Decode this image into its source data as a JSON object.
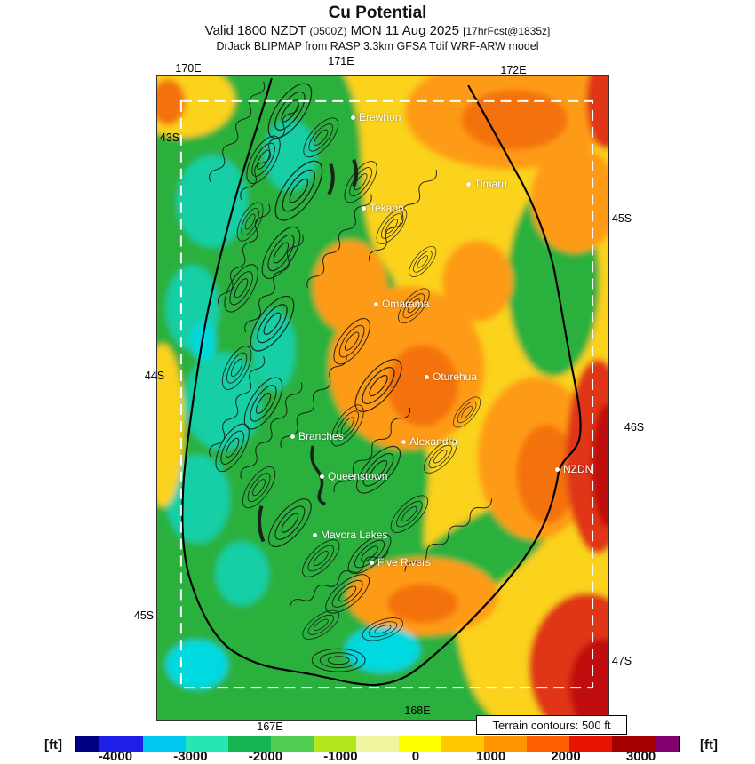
{
  "header": {
    "title": "Cu Potential",
    "valid_prefix": "Valid 1800 NZDT ",
    "valid_small1": "(0500Z)",
    "valid_mid": " MON 11 Aug 2025 ",
    "valid_small2": "[17hrFcst@1835z]",
    "model_line": "DrJack BLIPMAP from RASP 3.3km GFSA Tdif WRF-ARW model"
  },
  "map": {
    "note": "Terrain contours: 500 ft",
    "lon_top": [
      "170E",
      "171E",
      "172E"
    ],
    "lon_bottom": [
      "167E",
      "168E"
    ],
    "lat_left": [
      "43S",
      "44S",
      "45S"
    ],
    "lat_right": [
      "45S",
      "46S",
      "47S"
    ],
    "cities": [
      "Erewhon",
      "Timaru",
      "Tekapo",
      "Omarama",
      "Oturehua",
      "Branches",
      "Alexandra",
      "NZDN",
      "Queenstown",
      "Mavora Lakes",
      "Five Rivers"
    ]
  },
  "colorbar": {
    "unit_left": "[ft]",
    "unit_right": "[ft]",
    "ticks": [
      "-4000",
      "-3000",
      "-2000",
      "-1000",
      "0",
      "1000",
      "2000",
      "3000"
    ],
    "segments": [
      {
        "color": "#000082",
        "flex": 0.55
      },
      {
        "color": "#1e1ee6",
        "flex": 1
      },
      {
        "color": "#00c8f0",
        "flex": 1
      },
      {
        "color": "#28e6b4",
        "flex": 1
      },
      {
        "color": "#14b450",
        "flex": 1
      },
      {
        "color": "#50cd50",
        "flex": 1
      },
      {
        "color": "#b4e61e",
        "flex": 1
      },
      {
        "color": "#f0f5a0",
        "flex": 1
      },
      {
        "color": "#ffff00",
        "flex": 1
      },
      {
        "color": "#ffc800",
        "flex": 1
      },
      {
        "color": "#ff9600",
        "flex": 1
      },
      {
        "color": "#ff5f00",
        "flex": 1
      },
      {
        "color": "#e61400",
        "flex": 1
      },
      {
        "color": "#a50000",
        "flex": 1
      },
      {
        "color": "#82006e",
        "flex": 0.55
      }
    ]
  },
  "field_palette": {
    "green": "#2cb13c",
    "teal": "#12cfa6",
    "cyan": "#00d9e0",
    "yellow": "#fbd21e",
    "orange": "#fe9b12",
    "deep_orange": "#f4720b",
    "red": "#e03414",
    "dark_red": "#c00d0d"
  }
}
